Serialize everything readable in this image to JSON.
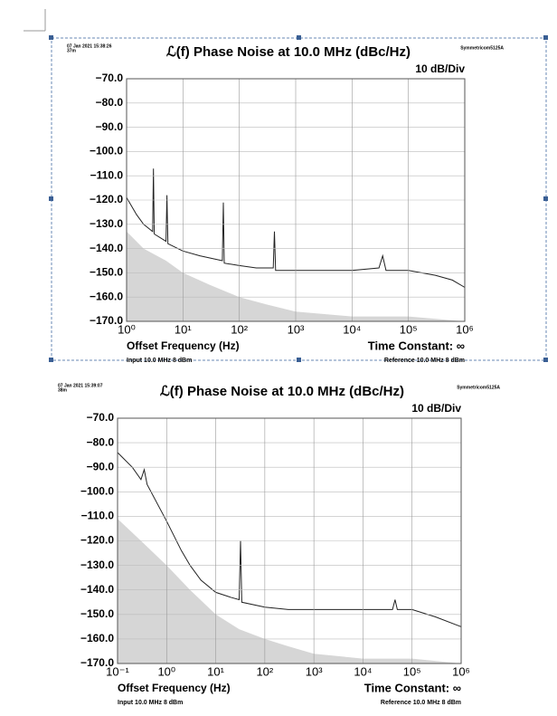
{
  "chart_data": [
    {
      "type": "line",
      "timestamp": "07 Jan 2021 15:38:26",
      "duration": "37m",
      "title": "ℒ(f) Phase Noise at 10.0 MHz (dBc/Hz)",
      "instrument": "Symmetricom5125A",
      "scale_label": "10 dB/Div",
      "x_label": "Offset Frequency (Hz)",
      "time_constant": "Time Constant: ∞",
      "input_label": "Input 10.0 MHz 8 dBm",
      "reference_label": "Reference 10.0 MHz 8 dBm",
      "xscale": "log",
      "grid": true,
      "xlim": [
        1,
        1000000
      ],
      "ylim": [
        -170,
        -70
      ],
      "xticks": [
        {
          "value": 1,
          "label": "10⁰"
        },
        {
          "value": 10,
          "label": "10¹"
        },
        {
          "value": 100,
          "label": "10²"
        },
        {
          "value": 1000,
          "label": "10³"
        },
        {
          "value": 10000,
          "label": "10⁴"
        },
        {
          "value": 100000,
          "label": "10⁵"
        },
        {
          "value": 1000000,
          "label": "10⁶"
        }
      ],
      "yticks": [
        {
          "value": -70,
          "label": "−70.0"
        },
        {
          "value": -80,
          "label": "−80.0"
        },
        {
          "value": -90,
          "label": "−90.0"
        },
        {
          "value": -100,
          "label": "−100.0"
        },
        {
          "value": -110,
          "label": "−110.0"
        },
        {
          "value": -120,
          "label": "−120.0"
        },
        {
          "value": -130,
          "label": "−130.0"
        },
        {
          "value": -140,
          "label": "−140.0"
        },
        {
          "value": -150,
          "label": "−150.0"
        },
        {
          "value": -160,
          "label": "−160.0"
        },
        {
          "value": -170,
          "label": "−170.0"
        }
      ],
      "series": [
        {
          "style": "area",
          "color": "#d6d6d6",
          "x": [
            1,
            2,
            5,
            10,
            30,
            100,
            300,
            1000,
            10000,
            100000,
            1000000
          ],
          "values": [
            -133,
            -140,
            -145,
            -150,
            -155,
            -160,
            -163,
            -166,
            -168,
            -168,
            -170
          ]
        },
        {
          "style": "line",
          "color": "#222222",
          "x": [
            1,
            1.5,
            2,
            2.9,
            3,
            3.1,
            5,
            5.2,
            5.4,
            10,
            20,
            50,
            52,
            54,
            100,
            200,
            400,
            420,
            440,
            1000,
            10000,
            30000,
            35000,
            40000,
            100000,
            300000,
            600000,
            1000000
          ],
          "values": [
            -119,
            -126,
            -130,
            -133,
            -107,
            -134,
            -137,
            -118,
            -138,
            -141,
            -143,
            -145,
            -121,
            -146,
            -147,
            -148,
            -148,
            -133,
            -149,
            -149,
            -149,
            -148,
            -143,
            -149,
            -149,
            -151,
            -153,
            -156
          ]
        }
      ]
    },
    {
      "type": "line",
      "timestamp": "07 Jan 2021 15:39:07",
      "duration": "38m",
      "title": "ℒ(f) Phase Noise at 10.0 MHz (dBc/Hz)",
      "instrument": "Symmetricom5125A",
      "scale_label": "10 dB/Div",
      "x_label": "Offset Frequency (Hz)",
      "time_constant": "Time Constant: ∞",
      "input_label": "Input 10.0 MHz 8 dBm",
      "reference_label": "Reference 10.0 MHz 8 dBm",
      "xscale": "log",
      "grid": true,
      "xlim": [
        0.1,
        1000000
      ],
      "ylim": [
        -170,
        -70
      ],
      "xticks": [
        {
          "value": 0.1,
          "label": "10⁻¹"
        },
        {
          "value": 1,
          "label": "10⁰"
        },
        {
          "value": 10,
          "label": "10¹"
        },
        {
          "value": 100,
          "label": "10²"
        },
        {
          "value": 1000,
          "label": "10³"
        },
        {
          "value": 10000,
          "label": "10⁴"
        },
        {
          "value": 100000,
          "label": "10⁵"
        },
        {
          "value": 1000000,
          "label": "10⁶"
        }
      ],
      "yticks": [
        {
          "value": -70,
          "label": "−70.0"
        },
        {
          "value": -80,
          "label": "−80.0"
        },
        {
          "value": -90,
          "label": "−90.0"
        },
        {
          "value": -100,
          "label": "−100.0"
        },
        {
          "value": -110,
          "label": "−110.0"
        },
        {
          "value": -120,
          "label": "−120.0"
        },
        {
          "value": -130,
          "label": "−130.0"
        },
        {
          "value": -140,
          "label": "−140.0"
        },
        {
          "value": -150,
          "label": "−150.0"
        },
        {
          "value": -160,
          "label": "−160.0"
        },
        {
          "value": -170,
          "label": "−170.0"
        }
      ],
      "series": [
        {
          "style": "area",
          "color": "#d6d6d6",
          "x": [
            0.1,
            0.3,
            1,
            3,
            10,
            30,
            100,
            300,
            1000,
            10000,
            100000,
            1000000
          ],
          "values": [
            -111,
            -120,
            -130,
            -140,
            -150,
            -156,
            -160,
            -163,
            -166,
            -168,
            -168,
            -170
          ]
        },
        {
          "style": "line",
          "color": "#222222",
          "x": [
            0.1,
            0.2,
            0.3,
            0.35,
            0.4,
            1,
            2,
            3,
            5,
            10,
            20,
            30,
            32,
            34,
            100,
            300,
            1000,
            10000,
            40000,
            45000,
            50000,
            100000,
            300000,
            1000000
          ],
          "values": [
            -84,
            -90,
            -95,
            -91,
            -97,
            -112,
            -124,
            -130,
            -136,
            -141,
            -143,
            -144,
            -120,
            -145,
            -147,
            -148,
            -148,
            -148,
            -148,
            -144,
            -148,
            -148,
            -151,
            -155
          ]
        }
      ]
    }
  ]
}
